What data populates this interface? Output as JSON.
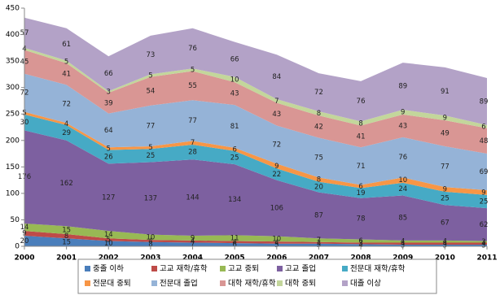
{
  "chart_data": {
    "type": "area",
    "stacked": true,
    "categories": [
      "2000",
      "2001",
      "2002",
      "2003",
      "2004",
      "2005",
      "2006",
      "2007",
      "2008",
      "2009",
      "2010",
      "2011"
    ],
    "ylim": [
      0,
      450
    ],
    "yticks": [
      0,
      50,
      100,
      150,
      200,
      250,
      300,
      350,
      400,
      450
    ],
    "grid": false,
    "legend": "bottom",
    "series": [
      {
        "name": "중졸 이하",
        "color": "#4a7ebb",
        "values": [
          20,
          15,
          10,
          8,
          7,
          6,
          5,
          5,
          4,
          3,
          3,
          3
        ]
      },
      {
        "name": "고교 재학/휴학",
        "color": "#be4b48",
        "values": [
          9,
          8,
          5,
          4,
          4,
          4,
          4,
          3,
          3,
          4,
          4,
          4
        ]
      },
      {
        "name": "고교 중퇴",
        "color": "#98b954",
        "values": [
          14,
          15,
          14,
          10,
          9,
          11,
          10,
          7,
          6,
          4,
          4,
          3
        ]
      },
      {
        "name": "고교 졸업",
        "color": "#7d60a0",
        "values": [
          176,
          162,
          127,
          137,
          144,
          134,
          106,
          87,
          78,
          85,
          67,
          62
        ]
      },
      {
        "name": "전문대 재학/휴학",
        "color": "#46aac5",
        "values": [
          30,
          29,
          26,
          25,
          28,
          25,
          22,
          20,
          19,
          24,
          25,
          25
        ]
      },
      {
        "name": "전문대 중퇴",
        "color": "#f79646",
        "values": [
          5,
          4,
          5,
          5,
          7,
          6,
          9,
          8,
          6,
          10,
          9,
          9
        ]
      },
      {
        "name": "전문대 졸업",
        "color": "#95b3d7",
        "values": [
          72,
          72,
          64,
          77,
          77,
          81,
          72,
          75,
          71,
          76,
          77,
          69
        ]
      },
      {
        "name": "대학 재학/휴학",
        "color": "#d99694",
        "values": [
          45,
          41,
          39,
          54,
          55,
          43,
          43,
          42,
          41,
          43,
          49,
          48
        ]
      },
      {
        "name": "대학 중퇴",
        "color": "#c3d69b",
        "values": [
          4,
          5,
          3,
          5,
          5,
          10,
          7,
          8,
          8,
          9,
          9,
          6
        ]
      },
      {
        "name": "대졸 이상",
        "color": "#b3a2c7",
        "values": [
          57,
          61,
          66,
          73,
          76,
          66,
          84,
          72,
          76,
          89,
          91,
          89
        ]
      }
    ]
  }
}
